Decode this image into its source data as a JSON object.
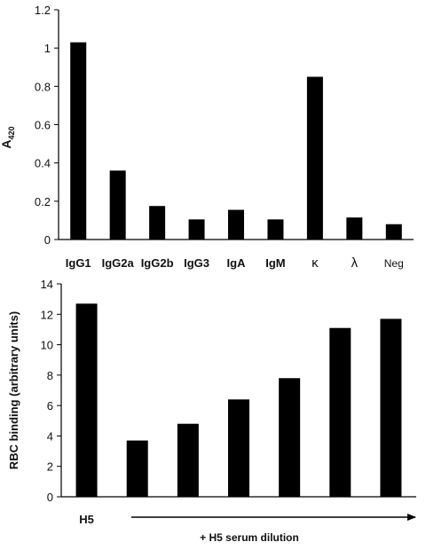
{
  "chart_data": [
    {
      "type": "bar",
      "ylabel_main": "A",
      "ylabel_sub": "420",
      "categories": [
        "IgG1",
        "IgG2a",
        "IgG2b",
        "IgG3",
        "IgA",
        "IgM",
        "κ",
        "λ",
        "Neg"
      ],
      "values": [
        1.03,
        0.36,
        0.175,
        0.105,
        0.155,
        0.105,
        0.85,
        0.115,
        0.08
      ],
      "yticks": [
        "0",
        "0.2",
        "0.4",
        "0.6",
        "0.8",
        "1",
        "1.2"
      ],
      "ylim": [
        0,
        1.2
      ],
      "color": "#000000"
    },
    {
      "type": "bar",
      "ylabel": "RBC binding (arbitrary units)",
      "categories": [
        "H5",
        "",
        "",
        "",
        "",
        "",
        ""
      ],
      "values": [
        12.7,
        3.7,
        4.8,
        6.4,
        7.8,
        11.1,
        11.7
      ],
      "yticks": [
        "0",
        "2",
        "4",
        "6",
        "8",
        "10",
        "12",
        "14"
      ],
      "ylim": [
        0,
        14
      ],
      "xlabel": "+ H5 serum dilution",
      "color": "#000000"
    }
  ]
}
